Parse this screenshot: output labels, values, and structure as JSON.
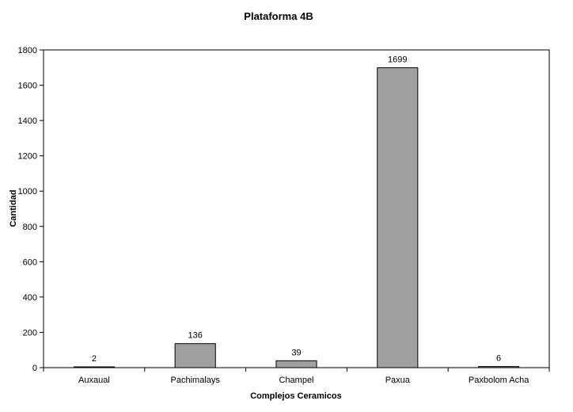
{
  "chart_data": {
    "type": "bar",
    "title": "Plataforma 4B",
    "xlabel": "Complejos Ceramicos",
    "ylabel": "Cantidad",
    "categories": [
      "Auxaual",
      "Pachimalays",
      "Champel",
      "Paxua",
      "Paxbolom Acha"
    ],
    "values": [
      2,
      136,
      39,
      1699,
      6
    ],
    "data_labels": [
      "2",
      "136",
      "39",
      "1699",
      "6"
    ],
    "ylim": [
      0,
      1800
    ],
    "yticks": [
      0,
      200,
      400,
      600,
      800,
      1000,
      1200,
      1400,
      1600,
      1800
    ],
    "grid": false,
    "legend": "none",
    "bar_color": "#a0a0a0",
    "bar_edge_color": "#000000"
  }
}
